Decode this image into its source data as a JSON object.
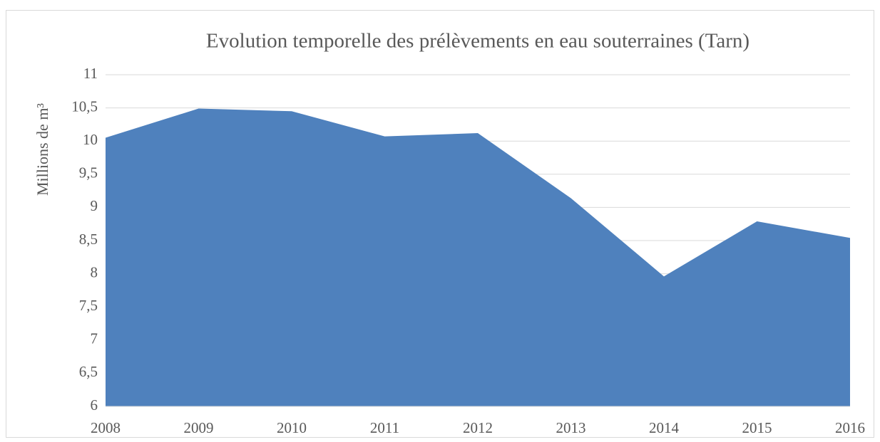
{
  "chart_data": {
    "type": "area",
    "title": "Evolution temporelle des prélèvements en eau souterraines (Tarn)",
    "y_label": "Millions de m³",
    "categories": [
      "2008",
      "2009",
      "2010",
      "2011",
      "2012",
      "2013",
      "2014",
      "2015",
      "2016"
    ],
    "values": [
      10.05,
      10.49,
      10.45,
      10.07,
      10.12,
      9.14,
      7.96,
      8.79,
      8.54
    ],
    "color": "#4f81bd",
    "ylim": [
      6,
      11
    ],
    "yticks": [
      6,
      {
        "value": 6.5,
        "label": "6,5"
      },
      7,
      {
        "value": 7.5,
        "label": "7,5"
      },
      8,
      {
        "value": 8.5,
        "label": "8,5"
      },
      9,
      {
        "value": 9.5,
        "label": "9,5"
      },
      10,
      {
        "value": 10.5,
        "label": "10,5"
      },
      11
    ],
    "grid": true
  }
}
